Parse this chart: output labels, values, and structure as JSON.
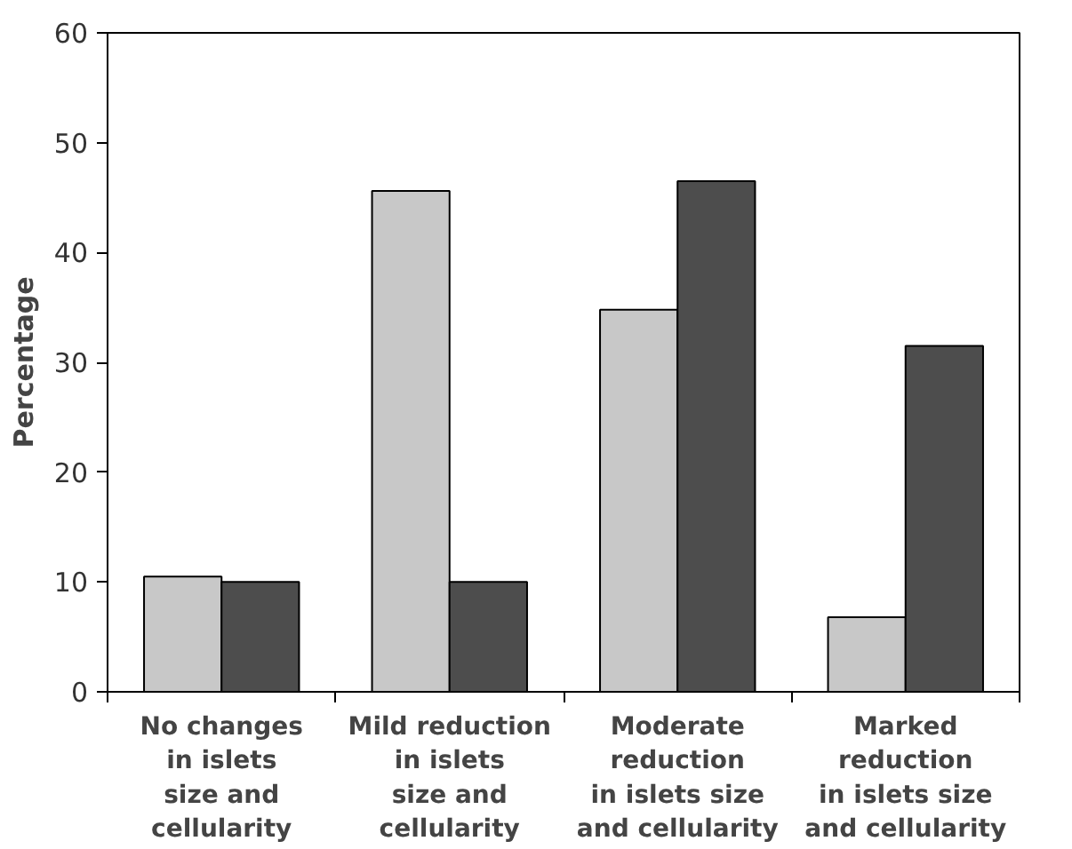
{
  "chart_data": {
    "type": "bar",
    "ylabel": "Percentage",
    "categories": [
      "No changes\nin islets\nsize and\ncellularity",
      "Mild reduction\nin islets\nsize and\ncellularity",
      "Moderate\nreduction\nin islets size\nand cellularity",
      "Marked\nreduction\nin islets size\nand cellularity"
    ],
    "series": [
      {
        "color": "#c8c8c8",
        "values": [
          10.5,
          45.6,
          34.8,
          6.8
        ]
      },
      {
        "color": "#4d4d4d",
        "values": [
          10.0,
          10.0,
          46.5,
          31.5
        ]
      }
    ],
    "ylim": [
      0,
      60
    ],
    "yticks": [
      0,
      10,
      20,
      30,
      40,
      50,
      60
    ],
    "grid": false
  }
}
